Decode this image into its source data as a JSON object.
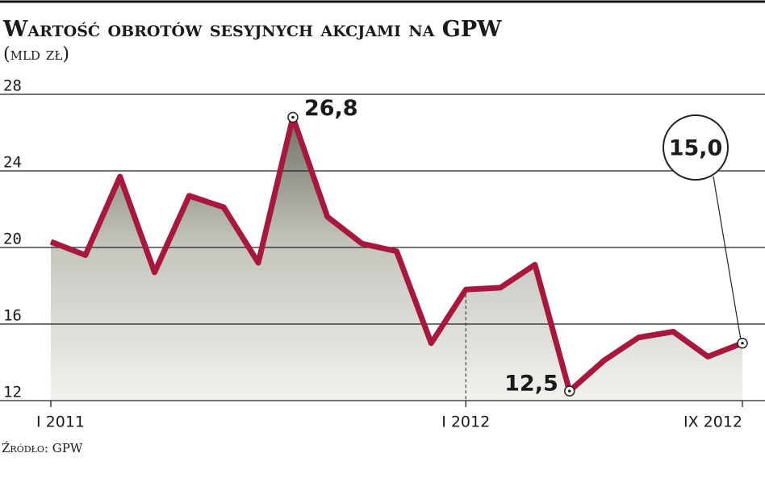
{
  "chart_data": {
    "type": "line",
    "title": "Wartość obrotów sesyjnych akcjami na GPW",
    "subtitle": "(mld zł)",
    "source": "Źródło: GPW",
    "categories": [
      "I 2011",
      null,
      null,
      null,
      null,
      null,
      null,
      null,
      null,
      null,
      null,
      null,
      "I 2012",
      null,
      null,
      null,
      null,
      null,
      null,
      null,
      "IX 2012"
    ],
    "series": [
      {
        "name": "Wartość obrotów",
        "color": "#a8173e",
        "values": [
          20.3,
          19.6,
          23.7,
          18.7,
          22.7,
          22.1,
          19.2,
          26.8,
          21.6,
          20.2,
          19.8,
          15.0,
          17.8,
          17.9,
          19.1,
          12.5,
          14.1,
          15.3,
          15.6,
          14.3,
          15.0
        ],
        "value_labels": [
          null,
          null,
          null,
          null,
          null,
          null,
          null,
          "26,8",
          null,
          null,
          null,
          null,
          null,
          null,
          null,
          "12,5",
          null,
          null,
          null,
          null,
          "15,0"
        ]
      }
    ],
    "ylim": [
      12,
      28
    ],
    "yticks": [
      12,
      16,
      20,
      24,
      28
    ],
    "grid": true
  }
}
